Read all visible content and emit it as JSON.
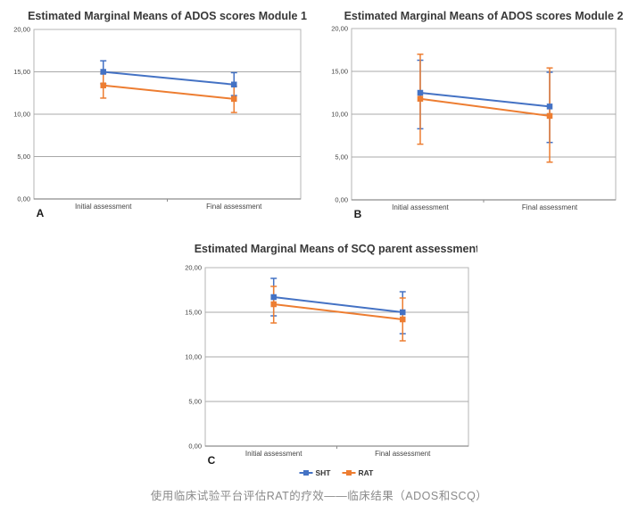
{
  "page": {
    "background": "#ffffff"
  },
  "caption": {
    "text": "使用临床试验平台评估RAT的疗效——临床结果（ADOS和SCQ）",
    "color": "#8a8a8a"
  },
  "legend": {
    "items": [
      {
        "label": "SHT",
        "color": "#4472c4"
      },
      {
        "label": "RAT",
        "color": "#ed7d31"
      }
    ]
  },
  "style": {
    "grid_color": "#a8a8a8",
    "frame_color": "#b5b5b5",
    "axis_color": "#8c8c8c",
    "title_color": "#383838",
    "tick_label_color": "#444444",
    "panel_letter_color": "#1a1a1a"
  },
  "chart_data": [
    {
      "id": "A",
      "type": "line",
      "title": "Estimated Marginal Means of ADOS scores Module 1",
      "panel_label": "A",
      "categories": [
        "Initial assessment",
        "Final assessment"
      ],
      "ylim": [
        0,
        20
      ],
      "yticks": [
        {
          "value": 20,
          "label": "20,00"
        },
        {
          "value": 15,
          "label": "15,00"
        },
        {
          "value": 10,
          "label": "10,00"
        },
        {
          "value": 5,
          "label": "5,00"
        },
        {
          "value": 0,
          "label": "0,00"
        }
      ],
      "grid": true,
      "show_legend": false,
      "series": [
        {
          "name": "SHT",
          "color": "#4472c4",
          "values": [
            15.0,
            13.5
          ],
          "error_low": [
            13.6,
            12.2
          ],
          "error_high": [
            16.3,
            14.9
          ]
        },
        {
          "name": "RAT",
          "color": "#ed7d31",
          "values": [
            13.4,
            11.8
          ],
          "error_low": [
            11.9,
            10.2
          ],
          "error_high": [
            14.8,
            13.3
          ]
        }
      ]
    },
    {
      "id": "B",
      "type": "line",
      "title": "Estimated Marginal Means of ADOS scores Module 2",
      "panel_label": "B",
      "categories": [
        "Initial assessment",
        "Final assessment"
      ],
      "ylim": [
        0,
        20
      ],
      "yticks": [
        {
          "value": 20,
          "label": "20,00"
        },
        {
          "value": 15,
          "label": "15,00"
        },
        {
          "value": 10,
          "label": "10,00"
        },
        {
          "value": 5,
          "label": "5,00"
        },
        {
          "value": 0,
          "label": "0,00"
        }
      ],
      "grid": true,
      "show_legend": false,
      "series": [
        {
          "name": "SHT",
          "color": "#4472c4",
          "values": [
            12.5,
            10.9
          ],
          "error_low": [
            8.3,
            6.7
          ],
          "error_high": [
            16.3,
            14.9
          ]
        },
        {
          "name": "RAT",
          "color": "#ed7d31",
          "values": [
            11.8,
            9.8
          ],
          "error_low": [
            6.5,
            4.4
          ],
          "error_high": [
            17.0,
            15.4
          ]
        }
      ]
    },
    {
      "id": "C",
      "type": "line",
      "title": "Estimated Marginal Means of SCQ parent assessment",
      "panel_label": "C",
      "categories": [
        "Initial assessment",
        "Final assessment"
      ],
      "ylim": [
        0,
        20
      ],
      "yticks": [
        {
          "value": 20,
          "label": "20,00"
        },
        {
          "value": 15,
          "label": "15,00"
        },
        {
          "value": 10,
          "label": "10,00"
        },
        {
          "value": 5,
          "label": "5,00"
        },
        {
          "value": 0,
          "label": "0,00"
        }
      ],
      "grid": true,
      "show_legend": true,
      "series": [
        {
          "name": "SHT",
          "color": "#4472c4",
          "values": [
            16.7,
            15.0
          ],
          "error_low": [
            14.6,
            12.6
          ],
          "error_high": [
            18.8,
            17.3
          ]
        },
        {
          "name": "RAT",
          "color": "#ed7d31",
          "values": [
            15.9,
            14.2
          ],
          "error_low": [
            13.8,
            11.8
          ],
          "error_high": [
            17.9,
            16.6
          ]
        }
      ]
    }
  ]
}
